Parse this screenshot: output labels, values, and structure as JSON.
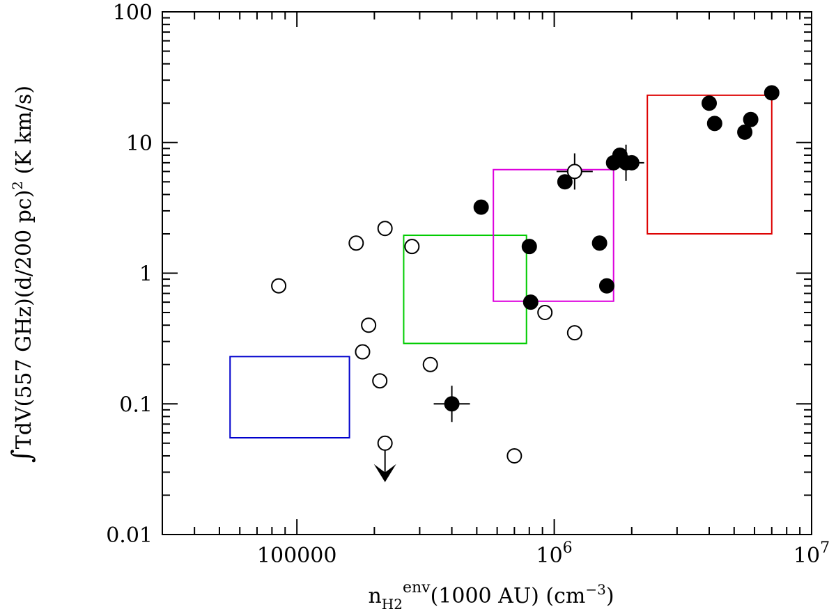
{
  "chart_data": {
    "type": "scatter",
    "xscale": "log",
    "yscale": "log",
    "xlim": [
      30000,
      10000000
    ],
    "ylim": [
      0.01,
      100
    ],
    "xlabel": {
      "prefix": "n",
      "sub": "H2",
      "sup": "env",
      "mid": "(1000 AU) (cm",
      "sup2": "−3",
      "suffix": ")"
    },
    "ylabel": {
      "integral": "∫",
      "main": "TdV(557 GHz)(d/200 pc)",
      "sup": "2",
      "units": " (K km/s)"
    },
    "x_tick_labels": [
      {
        "x": 100000,
        "text": "100000"
      },
      {
        "x": 1000000,
        "base": "10",
        "exp": "6"
      },
      {
        "x": 10000000,
        "base": "10",
        "exp": "7"
      }
    ],
    "y_tick_labels": [
      {
        "y": 100,
        "text": "100"
      },
      {
        "y": 10,
        "text": "10"
      },
      {
        "y": 1,
        "text": "1"
      },
      {
        "y": 0.1,
        "text": "0.1"
      },
      {
        "y": 0.01,
        "text": "0.01"
      }
    ],
    "series": [
      {
        "name": "open circles",
        "marker": "open-circle",
        "points": [
          {
            "x": 85000,
            "y": 0.8
          },
          {
            "x": 170000,
            "y": 1.7
          },
          {
            "x": 220000,
            "y": 2.2
          },
          {
            "x": 280000,
            "y": 1.6
          },
          {
            "x": 190000,
            "y": 0.4
          },
          {
            "x": 180000,
            "y": 0.25
          },
          {
            "x": 210000,
            "y": 0.15
          },
          {
            "x": 330000,
            "y": 0.2
          },
          {
            "x": 920000,
            "y": 0.5
          },
          {
            "x": 1200000,
            "y": 0.35
          },
          {
            "x": 700000,
            "y": 0.04
          },
          {
            "x": 220000,
            "y": 0.05,
            "upper_limit": true
          },
          {
            "x": 1200000,
            "y": 6.0,
            "errorbar": true
          }
        ]
      },
      {
        "name": "filled circles",
        "marker": "filled-circle",
        "points": [
          {
            "x": 400000,
            "y": 0.1,
            "errorbar": true
          },
          {
            "x": 520000,
            "y": 3.2
          },
          {
            "x": 800000,
            "y": 1.6
          },
          {
            "x": 810000,
            "y": 0.6
          },
          {
            "x": 1100000,
            "y": 5.0
          },
          {
            "x": 1500000,
            "y": 1.7
          },
          {
            "x": 1600000,
            "y": 0.8
          },
          {
            "x": 1700000,
            "y": 7.0
          },
          {
            "x": 1800000,
            "y": 8.0
          },
          {
            "x": 2000000,
            "y": 7.0
          },
          {
            "x": 1900000,
            "y": 7.0,
            "errorbar": true
          },
          {
            "x": 4000000,
            "y": 20
          },
          {
            "x": 4200000,
            "y": 14
          },
          {
            "x": 5500000,
            "y": 12
          },
          {
            "x": 5800000,
            "y": 15
          },
          {
            "x": 7000000,
            "y": 24
          }
        ]
      }
    ],
    "boxes": [
      {
        "name": "blue-box",
        "color": "#0000cc",
        "x0": 55000,
        "x1": 160000,
        "y0": 0.055,
        "y1": 0.23
      },
      {
        "name": "green-box",
        "color": "#00cc00",
        "x0": 260000,
        "x1": 780000,
        "y0": 0.29,
        "y1": 1.95
      },
      {
        "name": "magenta-box",
        "color": "#dd00dd",
        "x0": 580000,
        "x1": 1700000,
        "y0": 0.61,
        "y1": 6.2
      },
      {
        "name": "red-box",
        "color": "#dd0000",
        "x0": 2300000,
        "x1": 7000000,
        "y0": 2.0,
        "y1": 23
      }
    ]
  }
}
